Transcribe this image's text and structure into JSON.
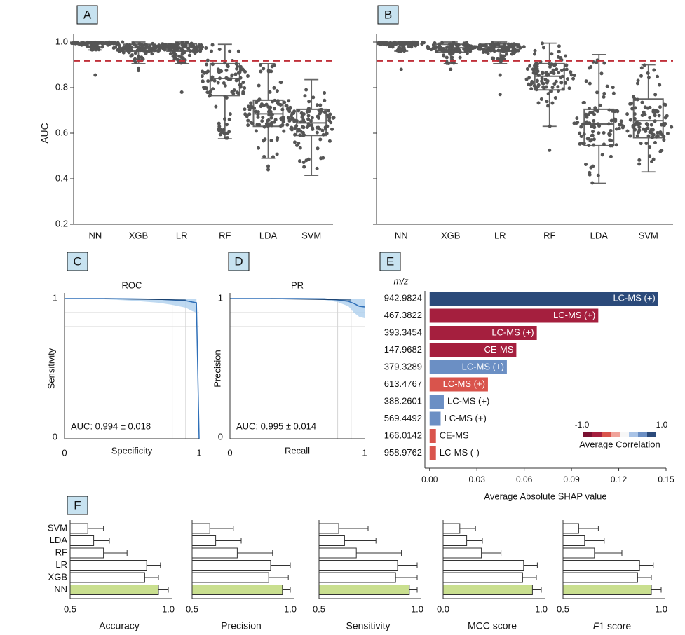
{
  "chart_data": [
    {
      "panel": "A",
      "type": "box",
      "ylabel": "AUC",
      "ylim": [
        0.2,
        1.0
      ],
      "yticks": [
        "0.2",
        "0.4",
        "0.6",
        "0.8",
        "1.0"
      ],
      "reference_line": 0.918,
      "categories": [
        "NN",
        "XGB",
        "LR",
        "RF",
        "LDA",
        "SVM"
      ],
      "boxes": [
        {
          "q1": 0.992,
          "median": 0.996,
          "q3": 0.999,
          "whisker_low": 0.965,
          "whisker_high": 1.0,
          "outliers": [
            0.855
          ]
        },
        {
          "q1": 0.96,
          "median": 0.975,
          "q3": 0.99,
          "whisker_low": 0.905,
          "whisker_high": 1.0,
          "outliers": [
            0.875,
            0.885
          ]
        },
        {
          "q1": 0.96,
          "median": 0.975,
          "q3": 0.992,
          "whisker_low": 0.905,
          "whisker_high": 1.0,
          "outliers": [
            0.78
          ]
        },
        {
          "q1": 0.765,
          "median": 0.84,
          "q3": 0.905,
          "whisker_low": 0.575,
          "whisker_high": 0.99,
          "outliers": []
        },
        {
          "q1": 0.63,
          "median": 0.685,
          "q3": 0.745,
          "whisker_low": 0.49,
          "whisker_high": 0.905,
          "outliers": [
            0.44,
            0.455
          ]
        },
        {
          "q1": 0.59,
          "median": 0.645,
          "q3": 0.705,
          "whisker_low": 0.415,
          "whisker_high": 0.835,
          "outliers": []
        }
      ]
    },
    {
      "panel": "B",
      "type": "box",
      "ylim": [
        0.2,
        1.0
      ],
      "reference_line": 0.918,
      "categories": [
        "NN",
        "XGB",
        "LR",
        "RF",
        "LDA",
        "SVM"
      ],
      "boxes": [
        {
          "q1": 0.99,
          "median": 0.995,
          "q3": 0.999,
          "whisker_low": 0.96,
          "whisker_high": 1.0,
          "outliers": [
            0.88
          ]
        },
        {
          "q1": 0.955,
          "median": 0.975,
          "q3": 0.99,
          "whisker_low": 0.905,
          "whisker_high": 1.0,
          "outliers": [
            0.88
          ]
        },
        {
          "q1": 0.96,
          "median": 0.978,
          "q3": 0.992,
          "whisker_low": 0.905,
          "whisker_high": 1.0,
          "outliers": [
            0.77,
            0.855
          ]
        },
        {
          "q1": 0.79,
          "median": 0.85,
          "q3": 0.905,
          "whisker_low": 0.63,
          "whisker_high": 0.995,
          "outliers": [
            0.525
          ]
        },
        {
          "q1": 0.545,
          "median": 0.64,
          "q3": 0.705,
          "whisker_low": 0.38,
          "whisker_high": 0.945,
          "outliers": []
        },
        {
          "q1": 0.58,
          "median": 0.655,
          "q3": 0.75,
          "whisker_low": 0.43,
          "whisker_high": 0.9,
          "outliers": []
        }
      ]
    },
    {
      "panel": "C",
      "type": "line",
      "title": "ROC",
      "xlabel": "Specificity",
      "ylabel": "Sensitivity",
      "xticks": [
        "0",
        "1"
      ],
      "yticks": [
        "0",
        "1"
      ],
      "annotation": "AUC: 0.994 ± 0.018",
      "x": [
        0.0,
        0.3,
        0.5,
        0.7,
        0.8,
        0.9,
        0.95,
        0.98,
        1.0
      ],
      "y": [
        1.0,
        1.0,
        0.998,
        0.995,
        0.99,
        0.985,
        0.975,
        0.97,
        0.0
      ],
      "band_low": [
        1.0,
        0.995,
        0.985,
        0.97,
        0.955,
        0.935,
        0.91,
        0.9,
        0.0
      ],
      "band_high": [
        1.0,
        1.0,
        1.0,
        1.0,
        1.0,
        1.0,
        1.0,
        1.0,
        0.0
      ]
    },
    {
      "panel": "D",
      "type": "line",
      "title": "PR",
      "xlabel": "Recall",
      "ylabel": "Precision",
      "xticks": [
        "0",
        "1"
      ],
      "yticks": [
        "0",
        "1"
      ],
      "annotation": "AUC: 0.995 ± 0.014",
      "x": [
        0.0,
        0.3,
        0.5,
        0.7,
        0.8,
        0.88,
        0.92,
        0.96,
        1.0
      ],
      "y": [
        1.0,
        1.0,
        1.0,
        0.998,
        0.99,
        0.98,
        0.965,
        0.945,
        0.94
      ],
      "band_low": [
        1.0,
        1.0,
        0.998,
        0.99,
        0.975,
        0.945,
        0.9,
        0.87,
        0.86
      ],
      "band_high": [
        1.0,
        1.0,
        1.0,
        1.0,
        1.0,
        1.0,
        1.0,
        1.0,
        1.0
      ]
    },
    {
      "panel": "E",
      "type": "bar",
      "orientation": "horizontal",
      "header": "m/z",
      "xlabel": "Average Absolute SHAP value",
      "xticks": [
        "0.00",
        "0.03",
        "0.06",
        "0.09",
        "0.12",
        "0.15"
      ],
      "xlim": [
        -0.003,
        0.15
      ],
      "categories": [
        "942.9824",
        "467.3822",
        "393.3454",
        "147.9682",
        "379.3289",
        "613.4767",
        "388.2601",
        "569.4492",
        "166.0142",
        "958.9762"
      ],
      "values": [
        0.145,
        0.107,
        0.068,
        0.055,
        0.049,
        0.037,
        0.009,
        0.007,
        0.004,
        0.004
      ],
      "labels": [
        "LC-MS (+)",
        "LC-MS (+)",
        "LC-MS (+)",
        "CE-MS",
        "LC-MS (+)",
        "LC-MS (+)",
        "LC-MS (+)",
        "LC-MS (+)",
        "CE-MS",
        "LC-MS (-)"
      ],
      "colors": [
        "#2b4a7a",
        "#a51f3e",
        "#a51f3e",
        "#a51f3e",
        "#6b8fc4",
        "#d9544c",
        "#6b8fc4",
        "#6b8fc4",
        "#d9544c",
        "#d9544c"
      ],
      "colorbar": {
        "label": "Average Correlation",
        "min_label": "-1.0",
        "max_label": "1.0",
        "colors": [
          "#7a1030",
          "#a51f3e",
          "#d9544c",
          "#f0a39a",
          "#f7f7f7",
          "#a9c3e6",
          "#6b8fc4",
          "#2b4a7a"
        ]
      }
    },
    {
      "panel": "F",
      "type": "bar",
      "orientation": "horizontal",
      "categories": [
        "SVM",
        "LDA",
        "RF",
        "LR",
        "XGB",
        "NN"
      ],
      "highlight_color": "#c9df8f",
      "subplots": [
        {
          "xlabel": "Accuracy",
          "xlim": [
            0.5,
            1.0
          ],
          "xticks": [
            "0.5",
            "1.0"
          ],
          "values": [
            0.59,
            0.62,
            0.67,
            0.89,
            0.88,
            0.95
          ],
          "errors": [
            0.08,
            0.08,
            0.12,
            0.07,
            0.07,
            0.05
          ]
        },
        {
          "xlabel": "Precision",
          "xlim": [
            0.5,
            1.0
          ],
          "xticks": [
            "0.5",
            "1.0"
          ],
          "values": [
            0.59,
            0.62,
            0.73,
            0.9,
            0.89,
            0.96
          ],
          "errors": [
            0.12,
            0.13,
            0.18,
            0.1,
            0.1,
            0.04
          ]
        },
        {
          "xlabel": "Sensitivity",
          "xlim": [
            0.5,
            1.0
          ],
          "xticks": [
            "0.5",
            "1.0"
          ],
          "values": [
            0.6,
            0.63,
            0.69,
            0.9,
            0.89,
            0.96
          ],
          "errors": [
            0.15,
            0.16,
            0.23,
            0.1,
            0.11,
            0.05
          ]
        },
        {
          "xlabel": "MCC score",
          "xlim": [
            0.0,
            1.0
          ],
          "xticks": [
            "0.0",
            "1.0"
          ],
          "values": [
            0.17,
            0.24,
            0.39,
            0.82,
            0.81,
            0.91
          ],
          "errors": [
            0.16,
            0.16,
            0.2,
            0.14,
            0.14,
            0.09
          ]
        },
        {
          "xlabel": "F1 score",
          "xlabel_italic_prefix": "F",
          "xlabel_suffix": "1 score",
          "xlim": [
            0.5,
            1.0
          ],
          "xticks": [
            "0.5",
            "1.0"
          ],
          "values": [
            0.58,
            0.61,
            0.66,
            0.89,
            0.88,
            0.95
          ],
          "errors": [
            0.1,
            0.1,
            0.14,
            0.07,
            0.07,
            0.05
          ]
        }
      ]
    }
  ]
}
